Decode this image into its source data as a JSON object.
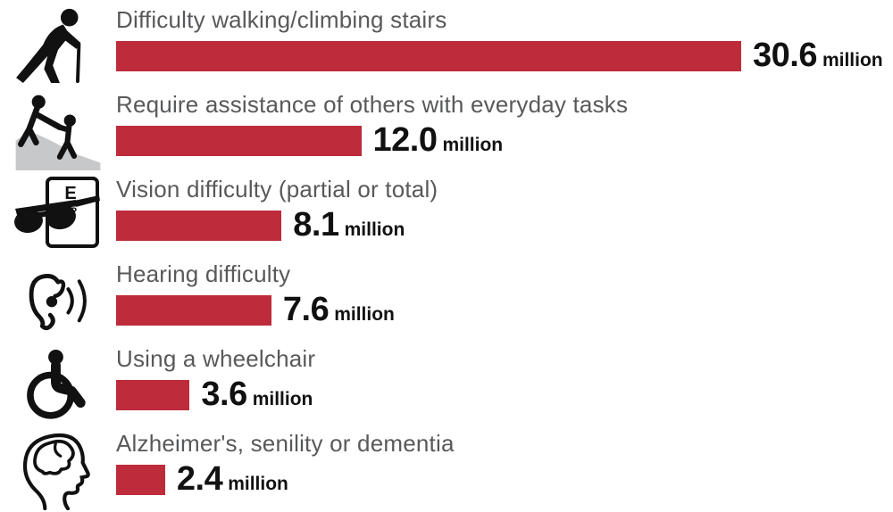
{
  "chart_data": {
    "type": "bar",
    "orientation": "horizontal",
    "title": "",
    "unit": "million",
    "categories": [
      "Difficulty walking/climbing stairs",
      "Require assistance of others with everyday tasks",
      "Vision difficulty (partial or total)",
      "Hearing difficulty",
      "Using a wheelchair",
      "Alzheimer's, senility or dementia"
    ],
    "values": [
      30.6,
      12.0,
      8.1,
      7.6,
      3.6,
      2.4
    ],
    "value_labels": [
      "30.6",
      "12.0",
      "8.1",
      "7.6",
      "3.6",
      "2.4"
    ],
    "icons": [
      "person-with-cane-icon",
      "helping-hand-icon",
      "sunglasses-eye-chart-icon",
      "ear-hearing-icon",
      "wheelchair-icon",
      "head-brain-icon"
    ],
    "xlim": [
      0,
      30.6
    ],
    "grid": false,
    "legend": "none",
    "bar_color": "#be2b3a",
    "label_color": "#58595b",
    "value_color": "#111111",
    "icon_color": "#111111",
    "hill_color": "#c7c8ca"
  }
}
